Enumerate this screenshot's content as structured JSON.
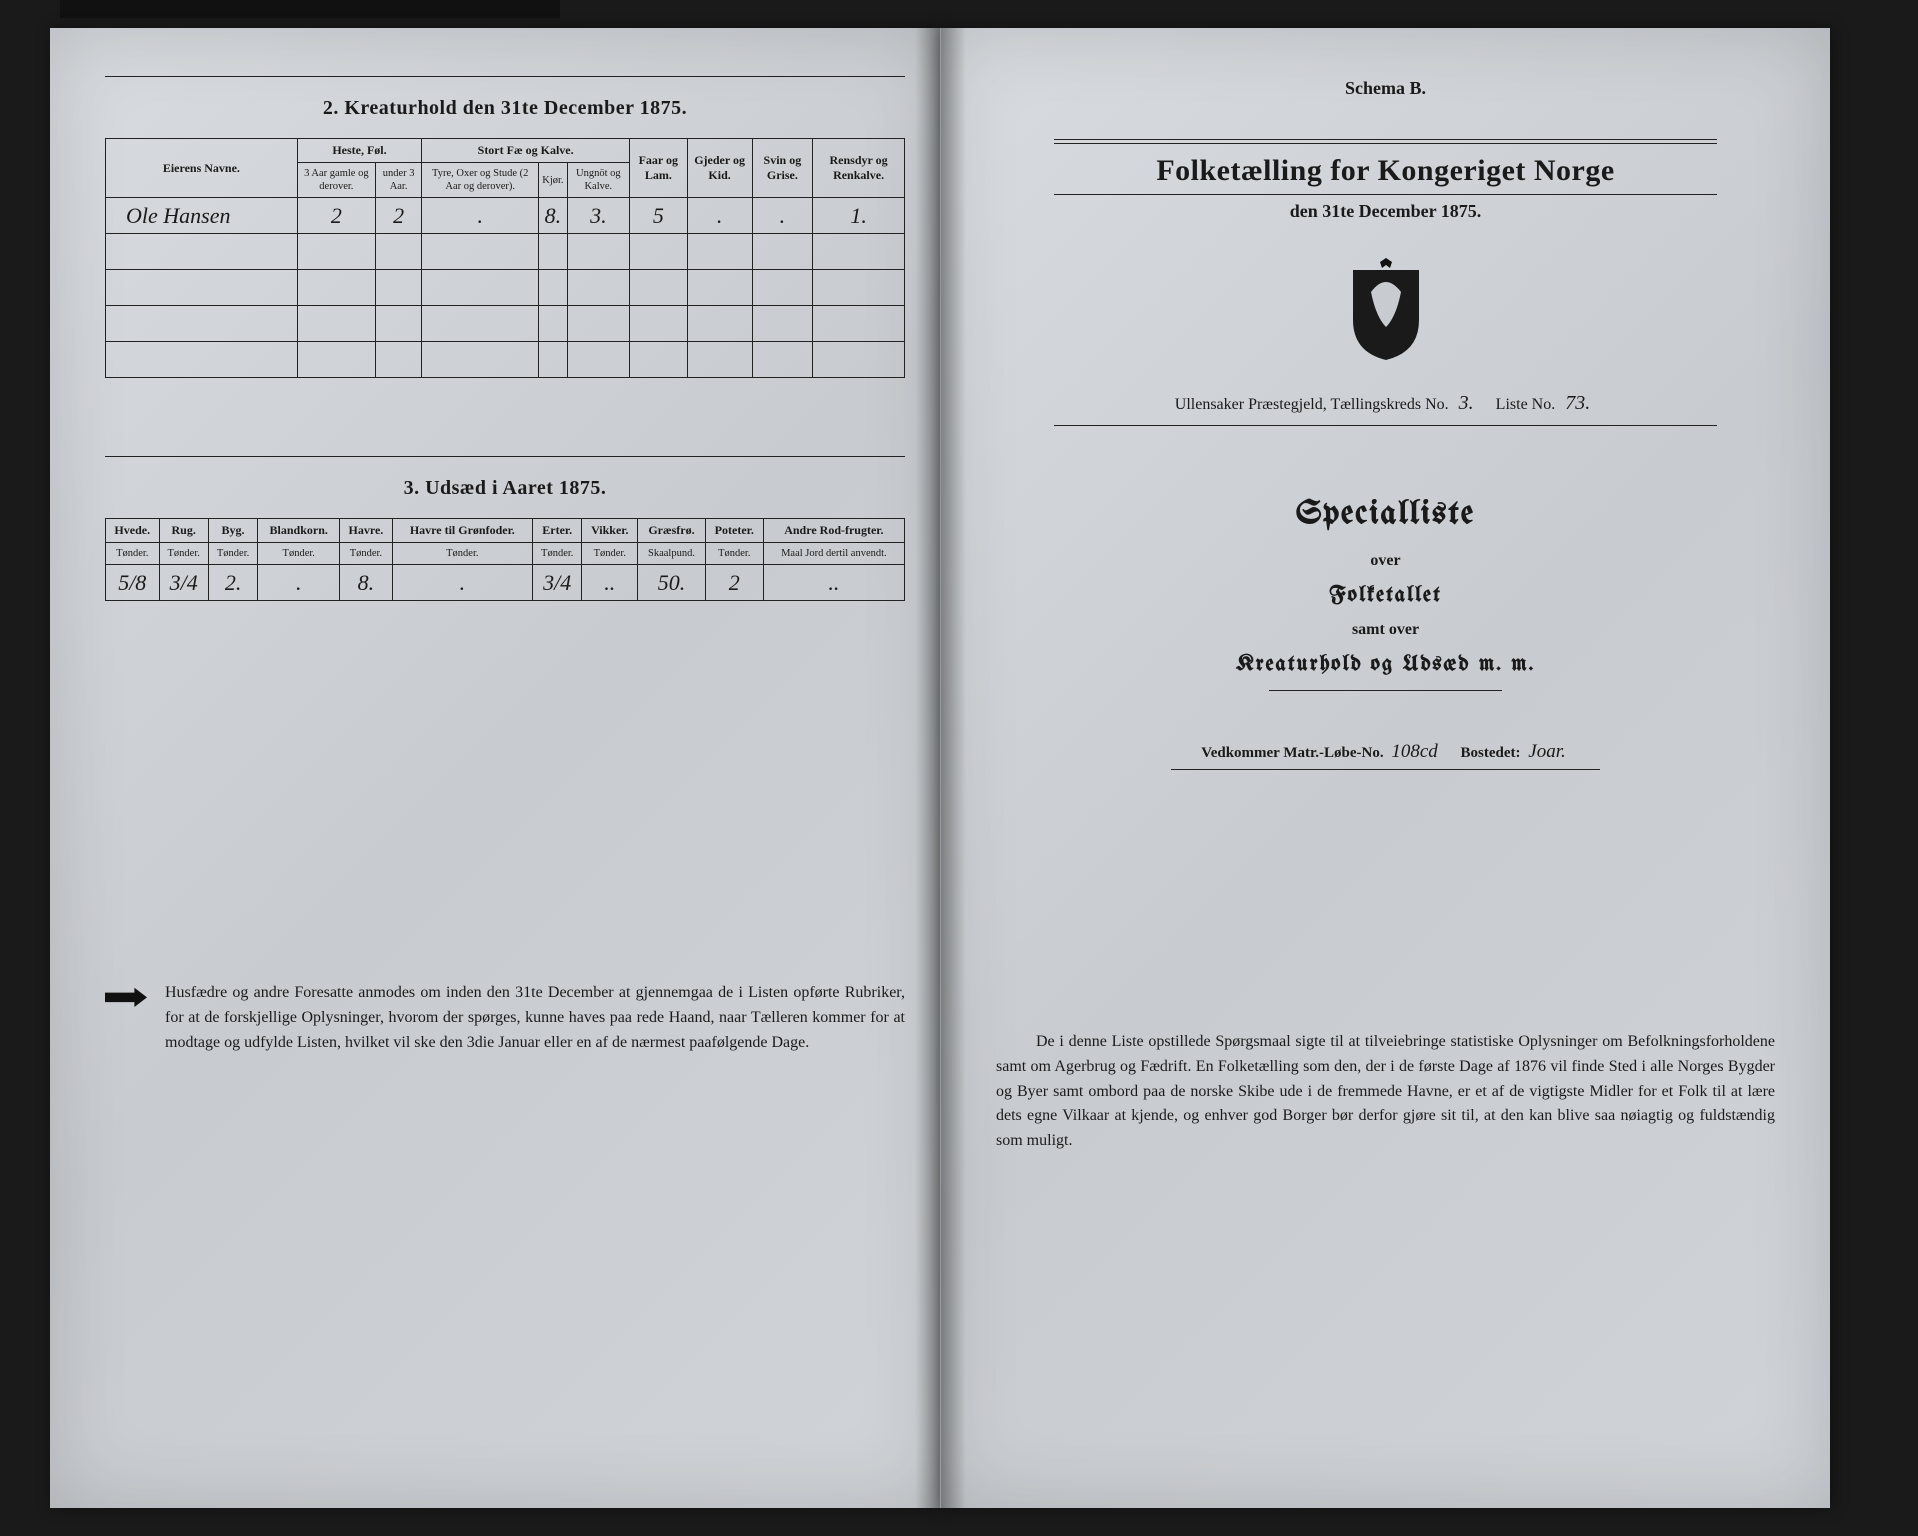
{
  "left": {
    "section2": {
      "title": "2.  Kreaturhold den 31te December 1875.",
      "col_owner": "Eierens Navne.",
      "group_heste": "Heste, Føl.",
      "group_stor": "Stort Fæ og Kalve.",
      "col_faar": "Faar og Lam.",
      "col_gjed": "Gjeder og Kid.",
      "col_svin": "Svin og Grise.",
      "col_ren": "Rensdyr og Renkalve.",
      "sub_h1": "3 Aar gamle og derover.",
      "sub_h2": "under 3 Aar.",
      "sub_s1": "Tyre, Oxer og Stude (2 Aar og derover).",
      "sub_s2": "Kjør.",
      "sub_s3": "Ungnöt og Kalve.",
      "row_name": "Ole Hansen",
      "v1": "2",
      "v2": "2",
      "v3": ".",
      "v4": "8.",
      "v5": "3.",
      "v6": "5",
      "v7": ".",
      "v8": ".",
      "v9": "1.",
      "v10": "."
    },
    "section3": {
      "title": "3.  Udsæd i Aaret 1875.",
      "cols": [
        "Hvede.",
        "Rug.",
        "Byg.",
        "Blandkorn.",
        "Havre.",
        "Havre til Grønfoder.",
        "Erter.",
        "Vikker.",
        "Græsfrø.",
        "Poteter.",
        "Andre Rod-frugter."
      ],
      "subs": [
        "Tønder.",
        "Tønder.",
        "Tønder.",
        "Tønder.",
        "Tønder.",
        "Tønder.",
        "Tønder.",
        "Tønder.",
        "Skaalpund.",
        "Tønder.",
        "Maal Jord dertil anvendt."
      ],
      "vals": [
        "5/8",
        "3/4",
        "2.",
        ".",
        "8.",
        ".",
        "3/4",
        "..",
        "50.",
        "2",
        ".."
      ]
    },
    "footnote": "Husfædre og andre Foresatte anmodes om inden den 31te December at gjennemgaa de i Listen opførte Rubriker, for at de forskjellige Oplysninger, hvorom der spørges, kunne haves paa rede Haand, naar Tælleren kommer for at modtage og udfylde Listen, hvilket vil ske den 3die Januar eller en af de nærmest paafølgende Dage."
  },
  "right": {
    "schema": "Schema B.",
    "title": "Folketælling for Kongeriget Norge",
    "date": "den 31te December 1875.",
    "enum_prefix": "Ullensaker Præstegjeld,  Tællingskreds No.",
    "enum_no": "3.",
    "liste_lbl": "Liste No.",
    "liste_no": "73.",
    "bl_special": "Specialliste",
    "bl_over1": "over",
    "bl_folke": "Folketallet",
    "bl_samt": "samt over",
    "bl_kreat": "Kreaturhold og Udsæd m. m.",
    "ved_lbl1": "Vedkommer Matr.-Løbe-No.",
    "ved_v1": "108cd",
    "ved_lbl2": "Bostedet:",
    "ved_v2": "Joar.",
    "paragraph": "De i denne Liste opstillede Spørgsmaal sigte til at tilveiebringe statistiske Oplysninger om Befolkningsforholdene samt om Agerbrug og Fædrift.  En Folketælling som den, der i de første Dage af 1876 vil finde Sted i alle Norges Bygder og Byer samt ombord paa de norske Skibe ude i de fremmede Havne, er et af de vigtigste Midler for et Folk til at lære dets egne Vilkaar at kjende, og enhver god Borger bør derfor gjøre sit til, at den kan blive saa nøiagtig og fuldstændig som muligt."
  }
}
